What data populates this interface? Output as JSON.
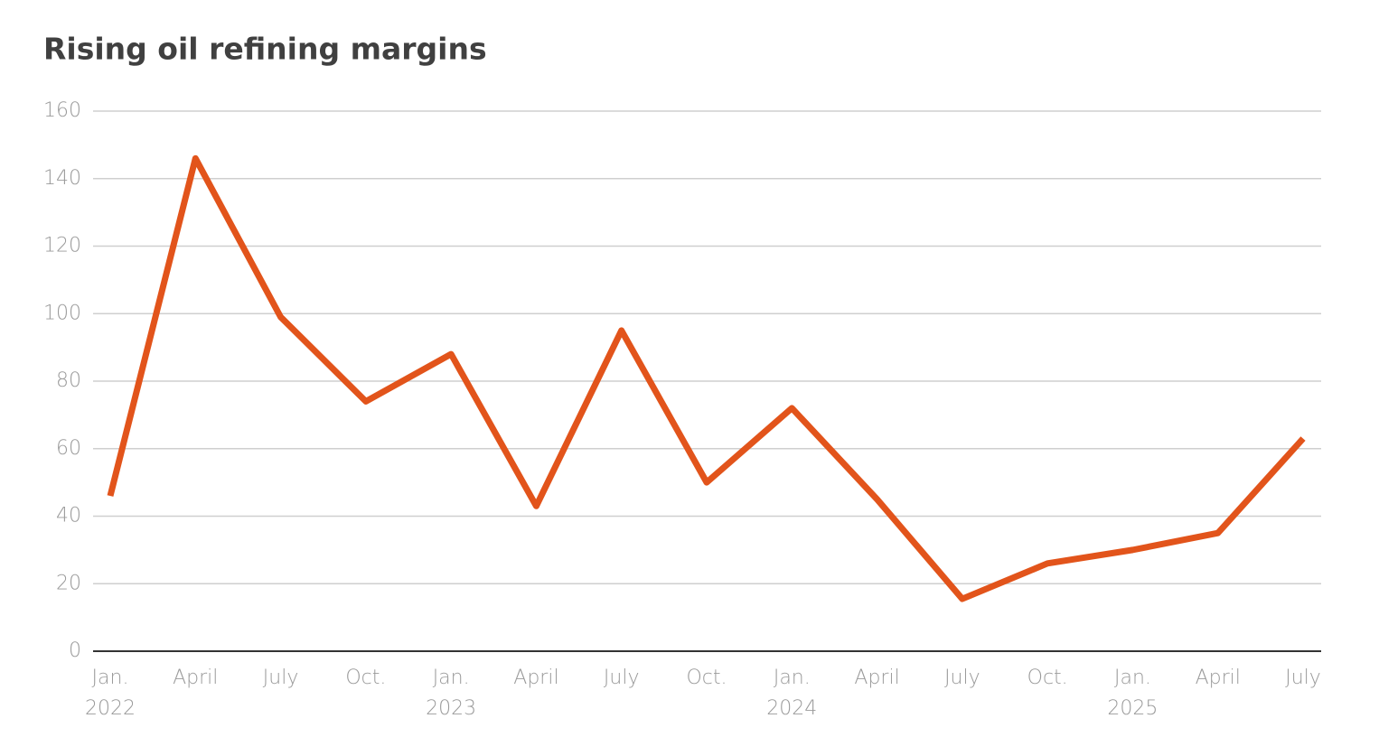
{
  "chart_data": {
    "type": "line",
    "title": "Rising oil refining margins",
    "categories": [
      "Jan.",
      "April",
      "July",
      "Oct.",
      "Jan.",
      "April",
      "July",
      "Oct.",
      "Jan.",
      "April",
      "July",
      "Oct.",
      "Jan.",
      "April",
      "July"
    ],
    "year_labels": [
      "2022",
      null,
      null,
      null,
      "2023",
      null,
      null,
      null,
      "2024",
      null,
      null,
      null,
      "2025",
      null,
      null
    ],
    "series": [
      {
        "name": null,
        "color": "#e2541b",
        "values": [
          46,
          146,
          99,
          74,
          88,
          43,
          95,
          50,
          72,
          45,
          15.5,
          26,
          30,
          35,
          63
        ]
      }
    ],
    "ylim": [
      0,
      160
    ],
    "yticks": [
      0,
      20,
      40,
      60,
      80,
      100,
      120,
      140,
      160
    ],
    "grid": true
  }
}
